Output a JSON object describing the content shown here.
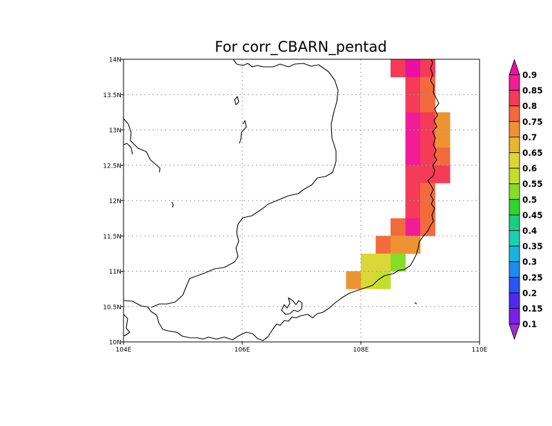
{
  "chart_data": {
    "type": "heatmap",
    "title": "For corr_CBARN_pentad",
    "xlabel": "",
    "ylabel": "",
    "xlim": [
      104,
      110
    ],
    "ylim": [
      10,
      14
    ],
    "grid": true,
    "x_ticks": [
      {
        "value": 104,
        "label": "104E"
      },
      {
        "value": 106,
        "label": "106E"
      },
      {
        "value": 108,
        "label": "108E"
      },
      {
        "value": 110,
        "label": "110E"
      }
    ],
    "y_ticks": [
      {
        "value": 10,
        "label": "10N"
      },
      {
        "value": 10.5,
        "label": "10.5N"
      },
      {
        "value": 11,
        "label": "11N"
      },
      {
        "value": 11.5,
        "label": "11.5N"
      },
      {
        "value": 12,
        "label": "12N"
      },
      {
        "value": 12.5,
        "label": "12.5N"
      },
      {
        "value": 13,
        "label": "13N"
      },
      {
        "value": 13.5,
        "label": "13.5N"
      },
      {
        "value": 14,
        "label": "14N"
      }
    ],
    "cell_size_deg": 0.25,
    "colorbar": {
      "position": "right",
      "levels": [
        "0.1",
        "0.15",
        "0.2",
        "0.25",
        "0.3",
        "0.35",
        "0.4",
        "0.45",
        "0.5",
        "0.55",
        "0.6",
        "0.65",
        "0.7",
        "0.75",
        "0.8",
        "0.85",
        "0.9"
      ],
      "colors": [
        "#9b2fd6",
        "#7a1fe8",
        "#5227f0",
        "#2a55ef",
        "#1f8bea",
        "#18b4dd",
        "#1ecfb8",
        "#17cf7e",
        "#2ed62c",
        "#86dc28",
        "#c2df2e",
        "#dbd737",
        "#e7b52e",
        "#ee9332",
        "#f36a3c",
        "#f43b57",
        "#f01d97",
        "#ea0fa0"
      ]
    },
    "cells": [
      {
        "lon": 108.625,
        "lat": 13.875,
        "value": 0.82
      },
      {
        "lon": 108.875,
        "lat": 13.875,
        "value": 0.92
      },
      {
        "lon": 109.125,
        "lat": 13.875,
        "value": 0.82
      },
      {
        "lon": 108.875,
        "lat": 13.625,
        "value": 0.82
      },
      {
        "lon": 109.125,
        "lat": 13.625,
        "value": 0.78
      },
      {
        "lon": 108.875,
        "lat": 13.375,
        "value": 0.82
      },
      {
        "lon": 109.125,
        "lat": 13.375,
        "value": 0.78
      },
      {
        "lon": 108.875,
        "lat": 13.125,
        "value": 0.87
      },
      {
        "lon": 109.125,
        "lat": 13.125,
        "value": 0.82
      },
      {
        "lon": 109.375,
        "lat": 13.125,
        "value": 0.73
      },
      {
        "lon": 108.875,
        "lat": 12.875,
        "value": 0.87
      },
      {
        "lon": 109.125,
        "lat": 12.875,
        "value": 0.82
      },
      {
        "lon": 109.375,
        "lat": 12.875,
        "value": 0.73
      },
      {
        "lon": 108.875,
        "lat": 12.625,
        "value": 0.87
      },
      {
        "lon": 109.125,
        "lat": 12.625,
        "value": 0.82
      },
      {
        "lon": 109.375,
        "lat": 12.625,
        "value": 0.78
      },
      {
        "lon": 108.875,
        "lat": 12.375,
        "value": 0.82
      },
      {
        "lon": 109.125,
        "lat": 12.375,
        "value": 0.82
      },
      {
        "lon": 109.375,
        "lat": 12.375,
        "value": 0.82
      },
      {
        "lon": 108.875,
        "lat": 12.125,
        "value": 0.82
      },
      {
        "lon": 109.125,
        "lat": 12.125,
        "value": 0.78
      },
      {
        "lon": 108.875,
        "lat": 11.875,
        "value": 0.82
      },
      {
        "lon": 109.125,
        "lat": 11.875,
        "value": 0.78
      },
      {
        "lon": 108.625,
        "lat": 11.625,
        "value": 0.78
      },
      {
        "lon": 108.875,
        "lat": 11.625,
        "value": 0.87
      },
      {
        "lon": 109.125,
        "lat": 11.625,
        "value": 0.78
      },
      {
        "lon": 108.375,
        "lat": 11.375,
        "value": 0.78
      },
      {
        "lon": 108.625,
        "lat": 11.375,
        "value": 0.73
      },
      {
        "lon": 108.875,
        "lat": 11.375,
        "value": 0.73
      },
      {
        "lon": 108.125,
        "lat": 11.125,
        "value": 0.63
      },
      {
        "lon": 108.375,
        "lat": 11.125,
        "value": 0.63
      },
      {
        "lon": 108.625,
        "lat": 11.125,
        "value": 0.52
      },
      {
        "lon": 107.875,
        "lat": 10.875,
        "value": 0.73
      },
      {
        "lon": 108.125,
        "lat": 10.875,
        "value": 0.63
      },
      {
        "lon": 108.375,
        "lat": 10.875,
        "value": 0.58
      }
    ]
  }
}
